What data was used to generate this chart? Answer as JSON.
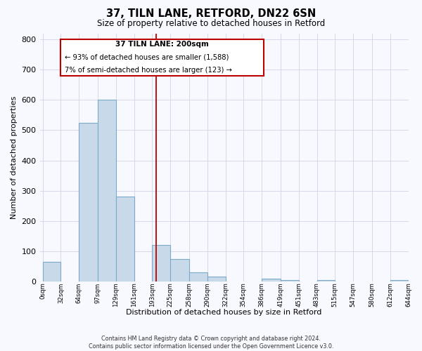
{
  "title": "37, TILN LANE, RETFORD, DN22 6SN",
  "subtitle": "Size of property relative to detached houses in Retford",
  "xlabel": "Distribution of detached houses by size in Retford",
  "ylabel": "Number of detached properties",
  "bar_left_edges": [
    0,
    32,
    64,
    97,
    129,
    161,
    193,
    225,
    258,
    290,
    322,
    354,
    386,
    419,
    451,
    483,
    515,
    547,
    580,
    612
  ],
  "bar_widths": [
    32,
    32,
    33,
    32,
    32,
    32,
    32,
    33,
    32,
    32,
    32,
    32,
    33,
    32,
    32,
    32,
    32,
    33,
    32,
    32
  ],
  "bar_heights": [
    65,
    0,
    525,
    600,
    280,
    0,
    120,
    75,
    30,
    15,
    0,
    0,
    10,
    5,
    0,
    5,
    0,
    0,
    0,
    5
  ],
  "bar_color": "#c8daea",
  "bar_edge_color": "#7aaac8",
  "vline_x": 200,
  "vline_color": "#bb0000",
  "annotation_text_line1": "37 TILN LANE: 200sqm",
  "annotation_text_line2": "← 93% of detached houses are smaller (1,588)",
  "annotation_text_line3": "7% of semi-detached houses are larger (123) →",
  "tick_labels": [
    "0sqm",
    "32sqm",
    "64sqm",
    "97sqm",
    "129sqm",
    "161sqm",
    "193sqm",
    "225sqm",
    "258sqm",
    "290sqm",
    "322sqm",
    "354sqm",
    "386sqm",
    "419sqm",
    "451sqm",
    "483sqm",
    "515sqm",
    "547sqm",
    "580sqm",
    "612sqm",
    "644sqm"
  ],
  "tick_positions": [
    0,
    32,
    64,
    97,
    129,
    161,
    193,
    225,
    258,
    290,
    322,
    354,
    386,
    419,
    451,
    483,
    515,
    547,
    580,
    612,
    644
  ],
  "ylim": [
    0,
    820
  ],
  "xlim": [
    -5,
    644
  ],
  "yticks": [
    0,
    100,
    200,
    300,
    400,
    500,
    600,
    700,
    800
  ],
  "footer_line1": "Contains HM Land Registry data © Crown copyright and database right 2024.",
  "footer_line2": "Contains public sector information licensed under the Open Government Licence v3.0.",
  "background_color": "#f8f8ff",
  "grid_color": "#d0d4e8"
}
